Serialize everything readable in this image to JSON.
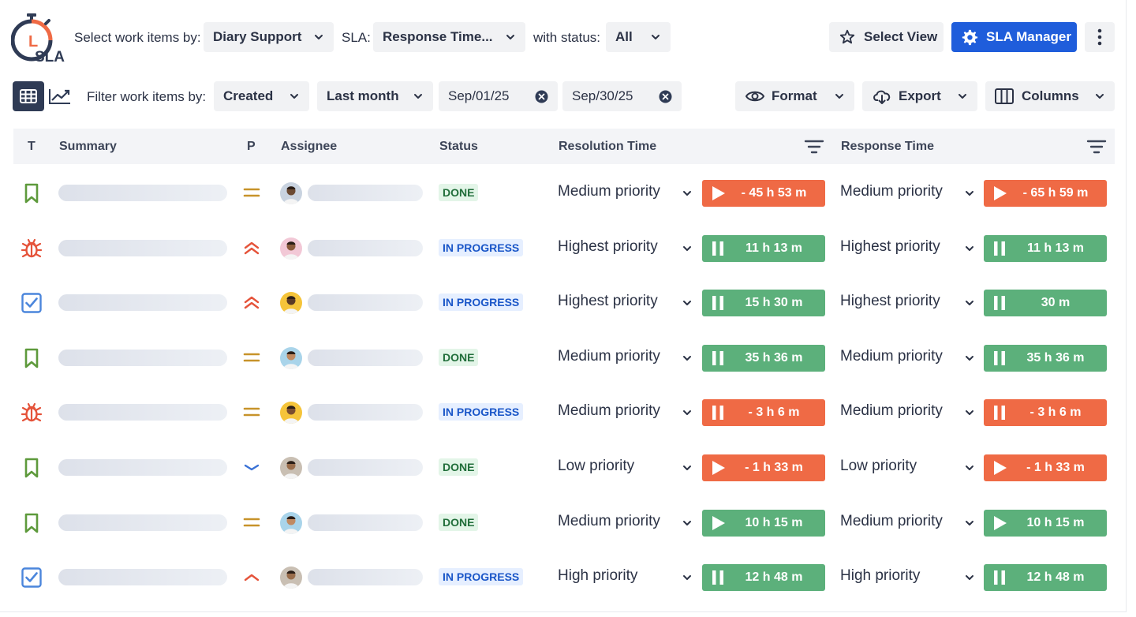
{
  "toolbar": {
    "select_label": "Select work items by:",
    "project_value": "Diary Support",
    "sla_label": "SLA:",
    "sla_value": "Response Time...",
    "status_label": "with status:",
    "status_value": "All",
    "select_view": "Select View",
    "sla_manager": "SLA Manager"
  },
  "logo": {
    "text": "SLA",
    "letter": "L"
  },
  "filters": {
    "label": "Filter work items by:",
    "field": "Created",
    "range": "Last month",
    "date_from": "Sep/01/25",
    "date_to": "Sep/30/25",
    "format": "Format",
    "export": "Export",
    "columns": "Columns"
  },
  "table": {
    "headers": {
      "type": "T",
      "summary": "Summary",
      "priority": "P",
      "assignee": "Assignee",
      "status": "Status",
      "resolution": "Resolution Time",
      "response": "Response Time"
    },
    "rows": [
      {
        "type": "story",
        "prio": "medium",
        "avatar": "#c9d3e0",
        "skin": "#6b4a33",
        "status": "DONE",
        "res_label": "Medium priority",
        "res_state": "play",
        "res_color": "red",
        "res_time": "- 45 h 53 m",
        "resp_label": "Medium priority",
        "resp_state": "play",
        "resp_color": "red",
        "resp_time": "- 65 h 59 m"
      },
      {
        "type": "bug",
        "prio": "highest",
        "avatar": "#f2c8d6",
        "skin": "#8a5a3c",
        "status": "IN PROGRESS",
        "res_label": "Highest priority",
        "res_state": "pause",
        "res_color": "green",
        "res_time": "11 h 13 m",
        "resp_label": "Highest priority",
        "resp_state": "pause",
        "resp_color": "green",
        "resp_time": "11 h 13 m"
      },
      {
        "type": "task",
        "prio": "highest",
        "avatar": "#f5c43a",
        "skin": "#5a3a26",
        "status": "IN PROGRESS",
        "res_label": "Highest priority",
        "res_state": "pause",
        "res_color": "green",
        "res_time": "15 h 30 m",
        "resp_label": "Highest priority",
        "resp_state": "pause",
        "resp_color": "green",
        "resp_time": "30 m"
      },
      {
        "type": "story",
        "prio": "medium",
        "avatar": "#a9d4ea",
        "skin": "#c08a62",
        "status": "DONE",
        "res_label": "Medium priority",
        "res_state": "pause",
        "res_color": "green",
        "res_time": "35 h 36 m",
        "resp_label": "Medium priority",
        "resp_state": "pause",
        "resp_color": "green",
        "resp_time": "35 h 36 m"
      },
      {
        "type": "bug",
        "prio": "medium",
        "avatar": "#f5c43a",
        "skin": "#7a4e30",
        "status": "IN PROGRESS",
        "res_label": "Medium priority",
        "res_state": "pause",
        "res_color": "red",
        "res_time": "- 3 h 6 m",
        "resp_label": "Medium priority",
        "resp_state": "pause",
        "resp_color": "red",
        "resp_time": "- 3 h 6 m"
      },
      {
        "type": "story",
        "prio": "low",
        "avatar": "#c9bfb3",
        "skin": "#9a6d4b",
        "status": "DONE",
        "res_label": "Low priority",
        "res_state": "play",
        "res_color": "red",
        "res_time": "- 1 h 33 m",
        "resp_label": "Low priority",
        "resp_state": "play",
        "resp_color": "red",
        "resp_time": "- 1 h 33 m"
      },
      {
        "type": "story",
        "prio": "medium",
        "avatar": "#a9d4ea",
        "skin": "#c08a62",
        "status": "DONE",
        "res_label": "Medium priority",
        "res_state": "play",
        "res_color": "green",
        "res_time": "10 h 15 m",
        "resp_label": "Medium priority",
        "resp_state": "play",
        "resp_color": "green",
        "resp_time": "10 h 15 m"
      },
      {
        "type": "task",
        "prio": "high",
        "avatar": "#c9bfb3",
        "skin": "#9a6d4b",
        "status": "IN PROGRESS",
        "res_label": "High priority",
        "res_state": "pause",
        "res_color": "green",
        "res_time": "12 h 48 m",
        "resp_label": "High priority",
        "resp_state": "pause",
        "resp_color": "green",
        "resp_time": "12 h 48 m"
      }
    ]
  },
  "colors": {
    "accent": "#1f5ddb",
    "timer_red": "#ef6a45",
    "timer_green": "#5cb07b",
    "done_bg": "#e3f5e8",
    "progress_bg": "#e6efff"
  }
}
